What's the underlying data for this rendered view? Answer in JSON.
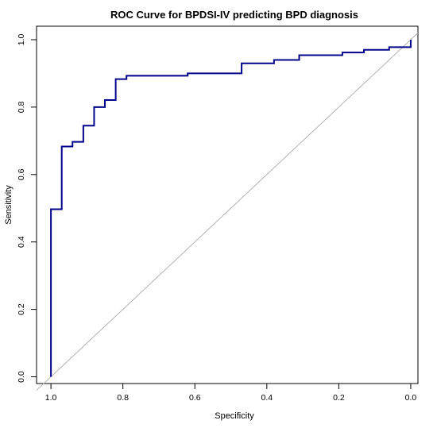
{
  "chart_data": {
    "type": "line",
    "title": "ROC Curve for BPDSI-IV predicting BPD diagnosis",
    "xlabel": "Specificity",
    "ylabel": "Sensitivity",
    "xlim": [
      1.04,
      -0.02
    ],
    "ylim": [
      -0.02,
      1.04
    ],
    "x_ticks": [
      1.0,
      0.8,
      0.6,
      0.4,
      0.2,
      0.0
    ],
    "x_tick_labels": [
      "1.0",
      "0.8",
      "0.6",
      "0.4",
      "0.2",
      "0.0"
    ],
    "y_ticks": [
      0.0,
      0.2,
      0.4,
      0.6,
      0.8,
      1.0
    ],
    "y_tick_labels": [
      "0.0",
      "0.2",
      "0.4",
      "0.6",
      "0.8",
      "1.0"
    ],
    "grid": false,
    "colors": {
      "roc": "#00008b",
      "reference": "#b3b3b3",
      "axis": "#000000"
    },
    "reference_line": {
      "intercept": 1,
      "slope": -1
    },
    "series": [
      {
        "values": [
          [
            1.0,
            0.0
          ],
          [
            1.0,
            0.497
          ],
          [
            0.97,
            0.497
          ],
          [
            0.97,
            0.683
          ],
          [
            0.94,
            0.683
          ],
          [
            0.94,
            0.697
          ],
          [
            0.91,
            0.697
          ],
          [
            0.91,
            0.745
          ],
          [
            0.88,
            0.745
          ],
          [
            0.88,
            0.8
          ],
          [
            0.85,
            0.8
          ],
          [
            0.85,
            0.821
          ],
          [
            0.82,
            0.821
          ],
          [
            0.82,
            0.883
          ],
          [
            0.79,
            0.883
          ],
          [
            0.79,
            0.893
          ],
          [
            0.62,
            0.893
          ],
          [
            0.62,
            0.9
          ],
          [
            0.47,
            0.9
          ],
          [
            0.47,
            0.93
          ],
          [
            0.38,
            0.93
          ],
          [
            0.38,
            0.94
          ],
          [
            0.31,
            0.94
          ],
          [
            0.31,
            0.954
          ],
          [
            0.19,
            0.954
          ],
          [
            0.19,
            0.962
          ],
          [
            0.13,
            0.962
          ],
          [
            0.13,
            0.97
          ],
          [
            0.06,
            0.97
          ],
          [
            0.06,
            0.978
          ],
          [
            0.0,
            0.978
          ],
          [
            0.0,
            1.0
          ]
        ]
      }
    ]
  }
}
